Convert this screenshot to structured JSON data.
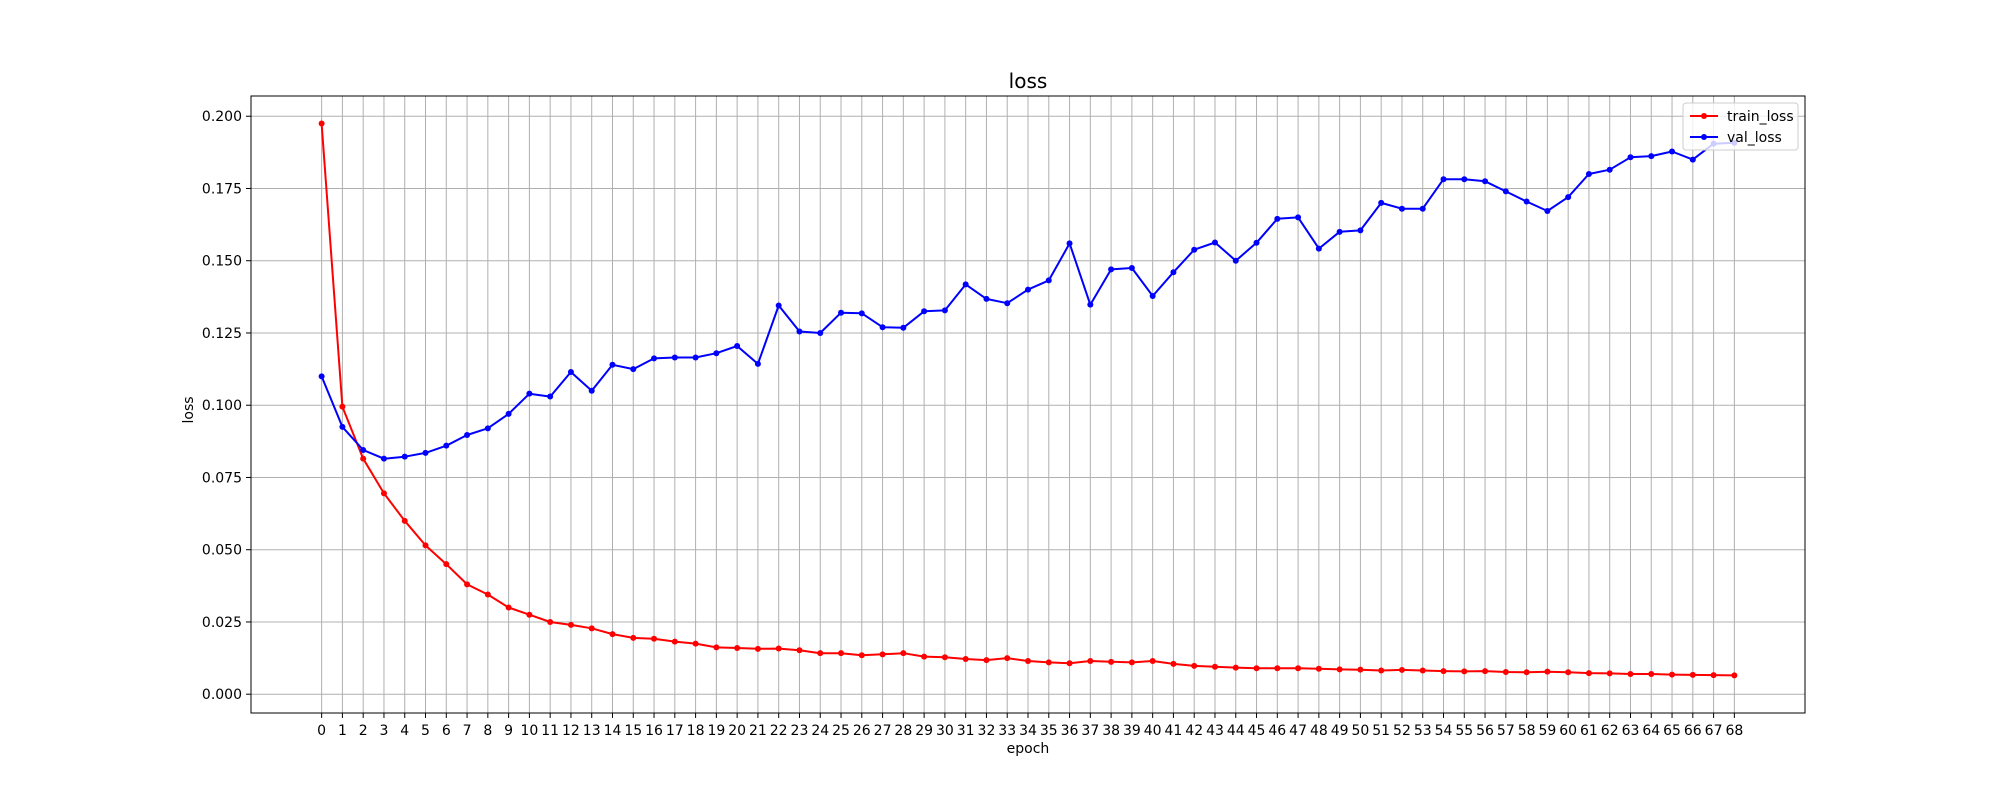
{
  "chart_data": {
    "type": "line",
    "title": "loss",
    "xlabel": "epoch",
    "ylabel": "loss",
    "xlim": [
      -3.4,
      71.4
    ],
    "ylim": [
      -0.0065,
      0.207
    ],
    "grid": true,
    "legend_position": "top-right",
    "y_ticks": [
      0.0,
      0.025,
      0.05,
      0.075,
      0.1,
      0.125,
      0.15,
      0.175,
      0.2
    ],
    "y_tick_labels": [
      "0.000",
      "0.025",
      "0.050",
      "0.075",
      "0.100",
      "0.125",
      "0.150",
      "0.175",
      "0.200"
    ],
    "x": [
      0,
      1,
      2,
      3,
      4,
      5,
      6,
      7,
      8,
      9,
      10,
      11,
      12,
      13,
      14,
      15,
      16,
      17,
      18,
      19,
      20,
      21,
      22,
      23,
      24,
      25,
      26,
      27,
      28,
      29,
      30,
      31,
      32,
      33,
      34,
      35,
      36,
      37,
      38,
      39,
      40,
      41,
      42,
      43,
      44,
      45,
      46,
      47,
      48,
      49,
      50,
      51,
      52,
      53,
      54,
      55,
      56,
      57,
      58,
      59,
      60,
      61,
      62,
      63,
      64,
      65,
      66,
      67,
      68
    ],
    "series": [
      {
        "name": "train_loss",
        "color": "#ff0000",
        "values": [
          0.1975,
          0.0995,
          0.0815,
          0.0695,
          0.06,
          0.0515,
          0.045,
          0.038,
          0.0345,
          0.03,
          0.0275,
          0.025,
          0.024,
          0.0228,
          0.0208,
          0.0195,
          0.0192,
          0.0182,
          0.0175,
          0.0162,
          0.016,
          0.0157,
          0.0158,
          0.0152,
          0.0142,
          0.0142,
          0.0135,
          0.0138,
          0.0142,
          0.013,
          0.0128,
          0.0122,
          0.0118,
          0.0125,
          0.0115,
          0.011,
          0.0107,
          0.0115,
          0.0112,
          0.011,
          0.0115,
          0.0105,
          0.0098,
          0.0095,
          0.0092,
          0.009,
          0.009,
          0.009,
          0.0088,
          0.0086,
          0.0085,
          0.0082,
          0.0084,
          0.0082,
          0.008,
          0.0079,
          0.008,
          0.0077,
          0.0076,
          0.0078,
          0.0076,
          0.0073,
          0.0072,
          0.007,
          0.007,
          0.0068,
          0.0067,
          0.0066,
          0.0065
        ]
      },
      {
        "name": "val_loss",
        "color": "#0000ff",
        "values": [
          0.11,
          0.0925,
          0.0845,
          0.0815,
          0.0822,
          0.0835,
          0.086,
          0.0897,
          0.092,
          0.097,
          0.104,
          0.103,
          0.1115,
          0.105,
          0.114,
          0.1125,
          0.1162,
          0.1165,
          0.1165,
          0.118,
          0.1205,
          0.1143,
          0.1345,
          0.1255,
          0.125,
          0.132,
          0.1318,
          0.127,
          0.1268,
          0.1325,
          0.1328,
          0.1418,
          0.1368,
          0.1353,
          0.14,
          0.1432,
          0.156,
          0.1348,
          0.147,
          0.1475,
          0.1378,
          0.146,
          0.1538,
          0.1563,
          0.15,
          0.1562,
          0.1645,
          0.165,
          0.1542,
          0.16,
          0.1605,
          0.17,
          0.168,
          0.168,
          0.1782,
          0.1782,
          0.1775,
          0.174,
          0.1705,
          0.1672,
          0.172,
          0.18,
          0.1815,
          0.1858,
          0.1862,
          0.1878,
          0.185,
          0.1905,
          0.1908
        ]
      }
    ]
  }
}
